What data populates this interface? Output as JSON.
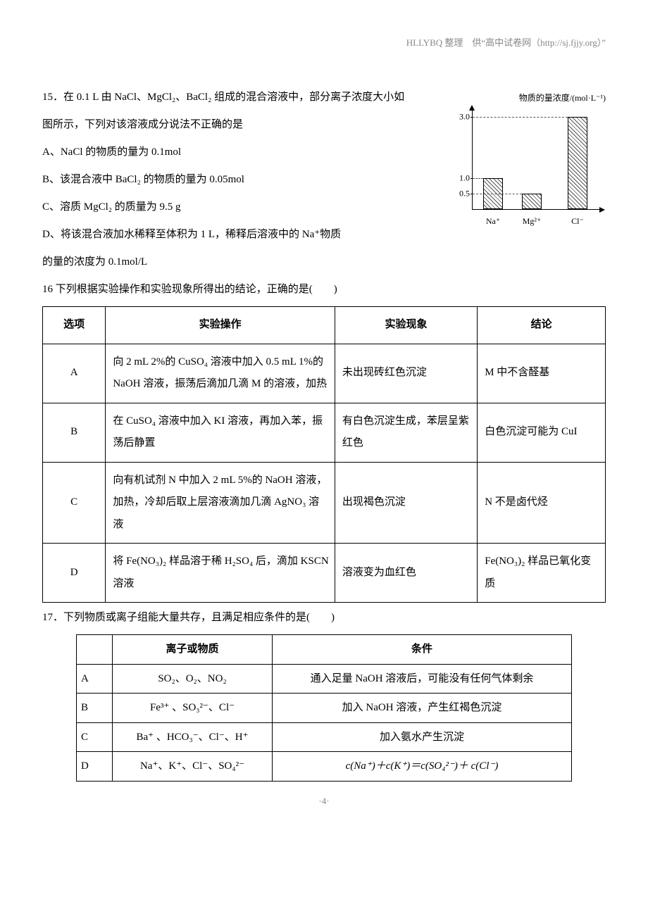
{
  "header": {
    "text": "HLLYBQ 整理　供“高中试卷网（http://sj.fjjy.org）”"
  },
  "q15": {
    "stem": "15．在 0.1 L 由 NaCl、MgCl₂、BaCl₂ 组成的混合溶液中，部分离子浓度大小如图所示，下列对该溶液成分说法不正确的是",
    "optA": "A、NaCl 的物质的量为 0.1mol",
    "optB": "B、该混合液中 BaCl₂ 的物质的量为 0.05mol",
    "optC": "C、溶质 MgCl₂ 的质量为 9.5 g",
    "optD_1": "D、将该混合液加水稀释至体积为 1 L，稀释后溶液中的 Na⁺物质",
    "optD_2": "的量的浓度为 0.1mol/L",
    "chart": {
      "title": "物质的量浓度/(mol·L⁻¹)",
      "ymax": 3.2,
      "yticks": [
        0.5,
        1.0,
        3.0
      ],
      "bars": [
        {
          "label": "Na⁺",
          "value": 1.0,
          "x": 15
        },
        {
          "label": "Mg²⁺",
          "value": 0.5,
          "x": 70
        },
        {
          "label": "Cl⁻",
          "value": 3.0,
          "x": 135
        }
      ],
      "bar_color_pattern": "hatched",
      "axis_color": "#000000",
      "dash_color": "#555555"
    }
  },
  "q16": {
    "intro": "16 下列根据实验操作和实验现象所得出的结论，正确的是(　　)",
    "headers": [
      "选项",
      "实验操作",
      "实验现象",
      "结论"
    ],
    "rows": [
      {
        "opt": "A",
        "op": "向 2 mL 2%的 CuSO₄ 溶液中加入 0.5 mL 1%的 NaOH 溶液，振荡后滴加几滴 M 的溶液，加热",
        "phen": "未出现砖红色沉淀",
        "conc": "M 中不含醛基"
      },
      {
        "opt": "B",
        "op": "在 CuSO₄ 溶液中加入 KI 溶液，再加入苯，振荡后静置",
        "phen": "有白色沉淀生成，苯层呈紫红色",
        "conc": "白色沉淀可能为 CuI"
      },
      {
        "opt": "C",
        "op": "向有机试剂 N 中加入 2 mL 5%的 NaOH 溶液，加热，冷却后取上层溶液滴加几滴 AgNO₃ 溶液",
        "phen": "出现褐色沉淀",
        "conc": "N 不是卤代烃"
      },
      {
        "opt": "D",
        "op": "将 Fe(NO₃)₂ 样品溶于稀 H₂SO₄ 后，滴加 KSCN 溶液",
        "phen": "溶液变为血红色",
        "conc": "Fe(NO₃)₂ 样品已氧化变质"
      }
    ],
    "col_widths": [
      "70px",
      "300px",
      "180px",
      "160px"
    ]
  },
  "q17": {
    "intro": "17．下列物质或离子组能大量共存，且满足相应条件的是(　　)",
    "headers": [
      "",
      "离子或物质",
      "条件"
    ],
    "rows": [
      {
        "opt": "A",
        "species": "SO₂、O₂、NO₂",
        "cond": "通入足量 NaOH 溶液后，可能没有任何气体剩余"
      },
      {
        "opt": "B",
        "species": "Fe³⁺ 、SO₃²⁻、Cl⁻",
        "cond": "加入 NaOH 溶液，产生红褐色沉淀"
      },
      {
        "opt": "C",
        "species": "Ba⁺ 、HCO₃⁻、Cl⁻、H⁺",
        "cond": "加入氨水产生沉淀"
      },
      {
        "opt": "D",
        "species": "Na⁺、K⁺、Cl⁻、SO₄²⁻",
        "cond": "c(Na⁺)＋c(K⁺)＝c(SO₄²⁻)＋ c(Cl⁻)"
      }
    ],
    "col_widths": [
      "34px",
      "210px",
      "auto"
    ]
  },
  "footer": {
    "page": "·4·"
  }
}
